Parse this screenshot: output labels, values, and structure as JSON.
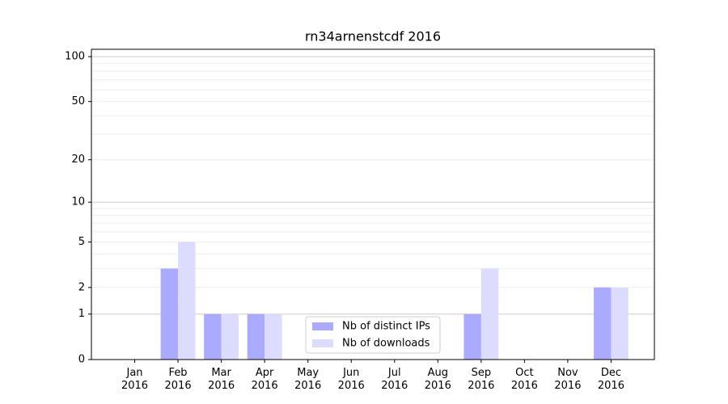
{
  "chart_data": {
    "type": "bar",
    "title": "rn34arnenstcdf 2016",
    "categories": [
      "Jan 2016",
      "Feb 2016",
      "Mar 2016",
      "Apr 2016",
      "May 2016",
      "Jun 2016",
      "Jul 2016",
      "Aug 2016",
      "Sep 2016",
      "Oct 2016",
      "Nov 2016",
      "Dec 2016"
    ],
    "series": [
      {
        "name": "Nb of distinct IPs",
        "color": "#aaaaff",
        "values": [
          0,
          3,
          1,
          1,
          0,
          0,
          0,
          0,
          1,
          0,
          0,
          2
        ]
      },
      {
        "name": "Nb of downloads",
        "color": "#dcdcff",
        "values": [
          0,
          5,
          1,
          1,
          0,
          0,
          0,
          0,
          3,
          0,
          0,
          2
        ]
      }
    ],
    "yscale": "log1p",
    "ylim": [
      0,
      112
    ],
    "yticks": [
      0,
      1,
      2,
      5,
      10,
      20,
      50,
      100
    ],
    "major_grid": [
      1,
      10,
      100
    ],
    "minor_grid": [
      2,
      3,
      4,
      5,
      6,
      7,
      8,
      9,
      20,
      30,
      40,
      50,
      60,
      70,
      80,
      90
    ],
    "legend": "lower center"
  }
}
